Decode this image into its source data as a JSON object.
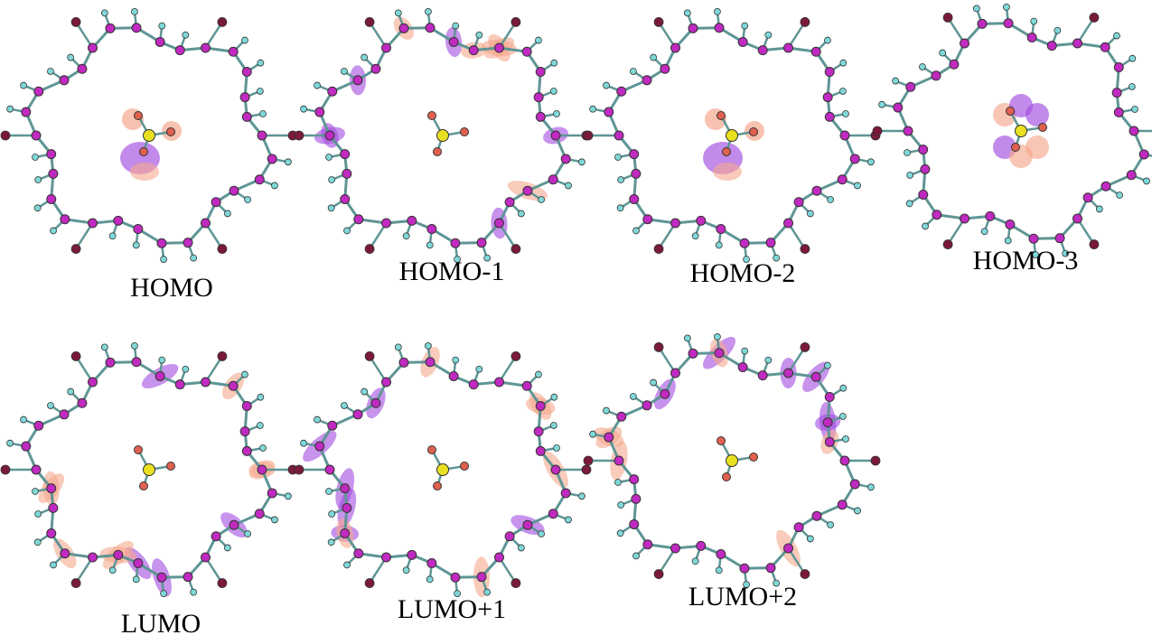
{
  "panels": [
    {
      "label": "HOMO"
    },
    {
      "label": "HOMO-1"
    },
    {
      "label": "HOMO-2"
    },
    {
      "label": "HOMO-3"
    },
    {
      "label": "LUMO"
    },
    {
      "label": "LUMO+1"
    },
    {
      "label": "LUMO+2"
    }
  ]
}
